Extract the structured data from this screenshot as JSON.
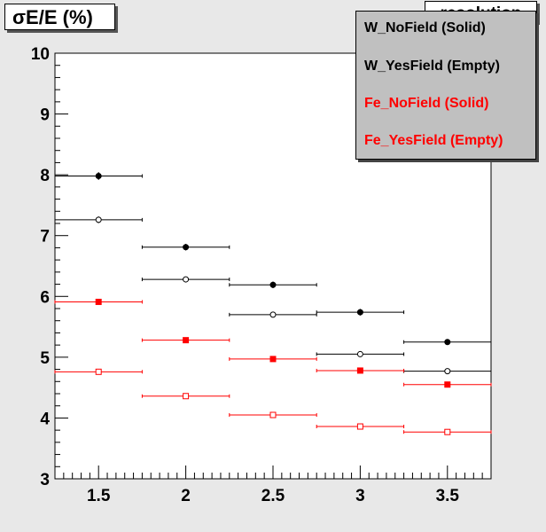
{
  "chart_data": {
    "type": "scatter",
    "ylabel": "σE/E (%)",
    "stats_title": "resolution",
    "x_ticks": [
      "1.5",
      "2",
      "2.5",
      "3",
      "3.5"
    ],
    "y_ticks": [
      "3",
      "4",
      "5",
      "6",
      "7",
      "8",
      "9",
      "10"
    ],
    "xlim": [
      1.25,
      3.75
    ],
    "ylim": [
      3,
      10
    ],
    "x_error": 0.25,
    "grid": false,
    "legend_position": "top-right",
    "series": [
      {
        "name": "W_NoField (Solid)",
        "color": "#000000",
        "marker": "filled-circle",
        "x": [
          1.5,
          2,
          2.5,
          3,
          3.5
        ],
        "y": [
          7.98,
          6.81,
          6.19,
          5.74,
          5.25
        ],
        "yerr": [
          0.05,
          0.04,
          0.04,
          0.04,
          0.03
        ]
      },
      {
        "name": "W_YesField (Empty)",
        "color": "#000000",
        "marker": "open-circle",
        "x": [
          1.5,
          2,
          2.5,
          3,
          3.5
        ],
        "y": [
          7.26,
          6.28,
          5.7,
          5.05,
          4.77
        ],
        "yerr": [
          0.04,
          0.03,
          0.03,
          0.03,
          0.03
        ]
      },
      {
        "name": "Fe_NoField (Solid)",
        "color": "#ff0000",
        "marker": "filled-square",
        "x": [
          1.5,
          2,
          2.5,
          3,
          3.5
        ],
        "y": [
          5.91,
          5.28,
          4.97,
          4.78,
          4.55
        ],
        "yerr": [
          0.03,
          0.03,
          0.03,
          0.02,
          0.02
        ]
      },
      {
        "name": "Fe_YesField (Empty)",
        "color": "#ff0000",
        "marker": "open-square",
        "x": [
          1.5,
          2,
          2.5,
          3,
          3.5
        ],
        "y": [
          4.76,
          4.36,
          4.05,
          3.86,
          3.77
        ],
        "yerr": [
          0.03,
          0.02,
          0.02,
          0.02,
          0.02
        ]
      }
    ]
  }
}
